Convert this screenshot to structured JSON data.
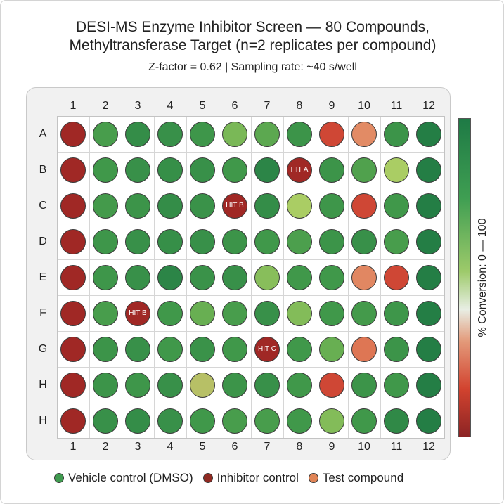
{
  "title_line1": "DESI-MS Enzyme Inhibitor Screen — 80 Compounds,",
  "title_line2": "Methyltransferase Target (n=2 replicates per compound)",
  "subtitle": "Z-factor = 0.62 | Sampling rate: ~40 s/well",
  "colorbar": {
    "label": "% Conversion: 0 — 100",
    "range": [
      0,
      100
    ],
    "colors_high_to_low": [
      "#1e7a45",
      "#3f9e52",
      "#9dca6a",
      "#e8eee4",
      "#e39a7a",
      "#d2432f",
      "#8c2424"
    ]
  },
  "legend": [
    {
      "label": "Vehicle control (DMSO)",
      "color": "#3f9a4f"
    },
    {
      "label": "Inhibitor control",
      "color": "#8f2a22"
    },
    {
      "label": "Test compound",
      "color": "#e08456"
    }
  ],
  "chart_data": {
    "type": "heatmap",
    "title": "DESI-MS Enzyme Inhibitor Screen — 80 Compounds, Methyltransferase Target (n=2 replicates per compound)",
    "columns": [
      "1",
      "2",
      "3",
      "4",
      "5",
      "6",
      "7",
      "8",
      "9",
      "10",
      "11",
      "12"
    ],
    "rows": [
      "A",
      "B",
      "C",
      "D",
      "E",
      "F",
      "G",
      "H",
      "H"
    ],
    "value_label": "% Conversion",
    "range": [
      0,
      100
    ],
    "values": [
      [
        5,
        80,
        88,
        86,
        83,
        68,
        75,
        84,
        20,
        40,
        84,
        96
      ],
      [
        5,
        82,
        86,
        87,
        86,
        82,
        92,
        5,
        84,
        78,
        58,
        96
      ],
      [
        5,
        81,
        84,
        88,
        85,
        5,
        88,
        58,
        83,
        20,
        82,
        96
      ],
      [
        5,
        83,
        86,
        87,
        86,
        84,
        82,
        79,
        84,
        86,
        80,
        96
      ],
      [
        5,
        83,
        86,
        92,
        85,
        86,
        65,
        82,
        82,
        38,
        20,
        96
      ],
      [
        5,
        80,
        5,
        82,
        72,
        80,
        86,
        66,
        82,
        81,
        83,
        96
      ],
      [
        5,
        84,
        86,
        82,
        85,
        82,
        5,
        82,
        72,
        30,
        84,
        96
      ],
      [
        5,
        84,
        83,
        86,
        55,
        84,
        86,
        82,
        20,
        84,
        82,
        96
      ],
      [
        5,
        86,
        88,
        86,
        82,
        80,
        80,
        82,
        66,
        82,
        90,
        96
      ]
    ],
    "labeled_wells": [
      {
        "row": 1,
        "col": 7,
        "label": "HIT A"
      },
      {
        "row": 2,
        "col": 5,
        "label": "HIT B"
      },
      {
        "row": 5,
        "col": 2,
        "label": "HIT B"
      },
      {
        "row": 6,
        "col": 6,
        "label": "HIT C"
      }
    ]
  }
}
